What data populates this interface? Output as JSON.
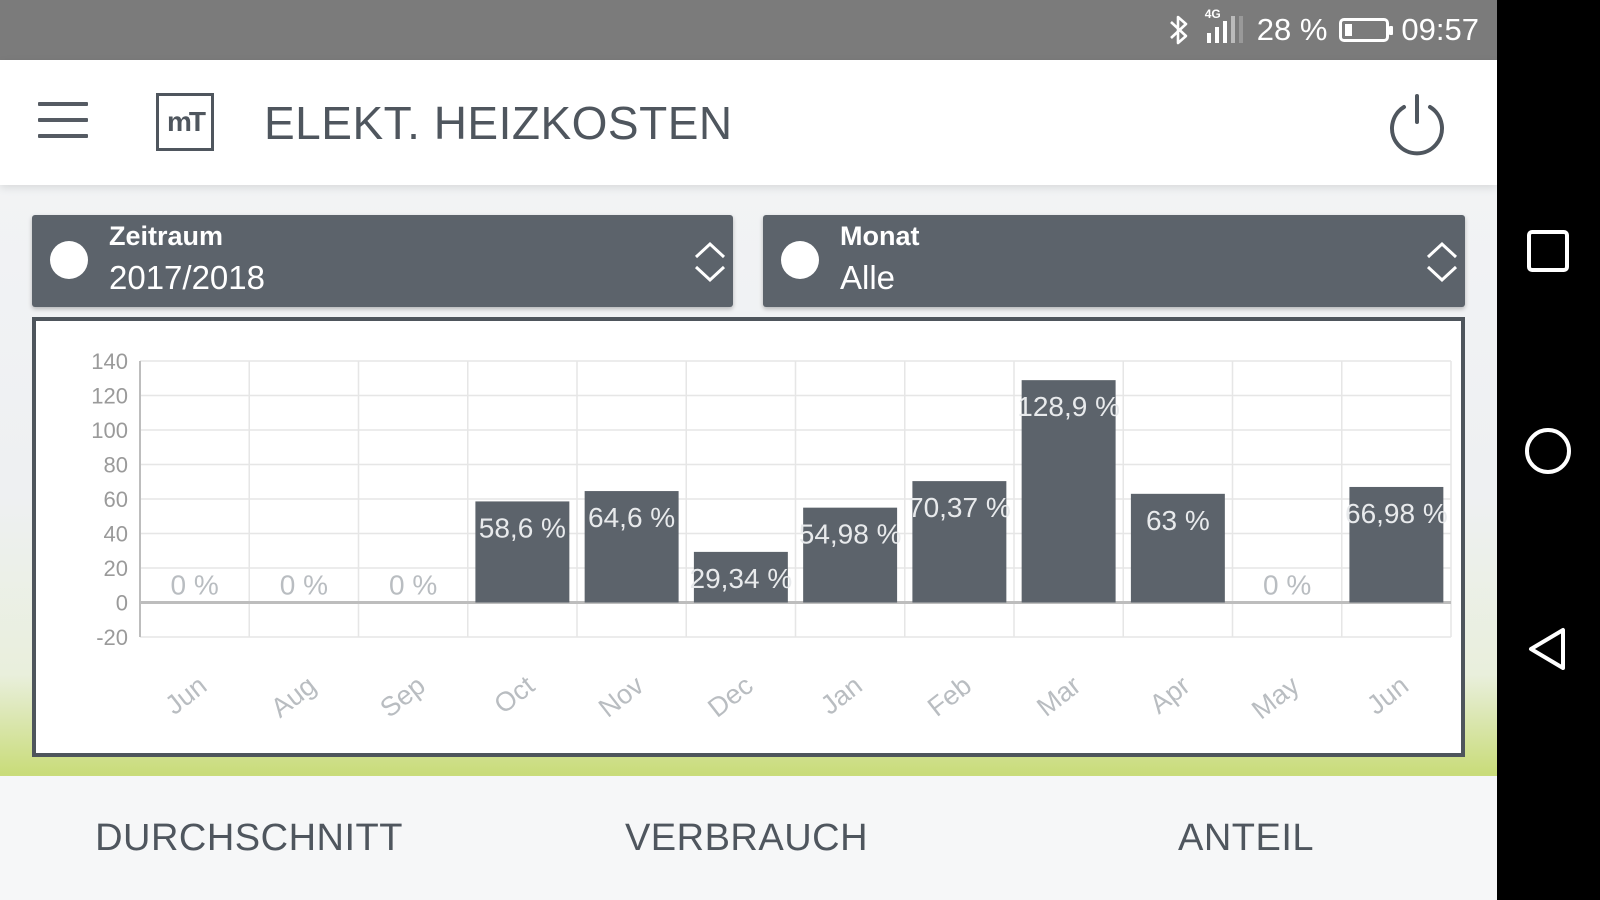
{
  "status_bar": {
    "network_label": "4G",
    "battery_percent": "28 %",
    "battery_level": 0.28,
    "time": "09:57",
    "icons": [
      "bluetooth-icon",
      "signal-icon",
      "battery-icon"
    ]
  },
  "app_bar": {
    "logo_text": "mT",
    "title": "ELEKT. HEIZKOSTEN",
    "icons": [
      "menu-icon",
      "power-icon"
    ]
  },
  "filters": [
    {
      "label": "Zeitraum",
      "value": "2017/2018"
    },
    {
      "label": "Monat",
      "value": "Alle"
    }
  ],
  "chart_data": {
    "type": "bar",
    "categories": [
      "Jun",
      "Aug",
      "Sep",
      "Oct",
      "Nov",
      "Dec",
      "Jan",
      "Feb",
      "Mar",
      "Apr",
      "May",
      "Jun"
    ],
    "values": [
      0,
      0,
      0,
      58.6,
      64.6,
      29.34,
      54.98,
      70.37,
      128.9,
      63,
      0,
      66.98
    ],
    "data_labels": [
      "0 %",
      "0 %",
      "0 %",
      "58,6 %",
      "64,6 %",
      "29,34 %",
      "54,98 %",
      "70,37 %",
      "128,9 %",
      "63 %",
      "0 %",
      "66,98 %"
    ],
    "y_ticks": [
      140,
      120,
      100,
      80,
      60,
      40,
      20,
      0,
      -20
    ],
    "ylim": [
      -20,
      140
    ],
    "grid": true,
    "colors": {
      "bar": "#5c636b",
      "label": "#e8eaec",
      "zero_label": "#b9bdc1",
      "grid": "#e6e6e6",
      "axis": "#bdbdbd"
    }
  },
  "tabs": [
    {
      "label": "DURCHSCHNITT",
      "active": true
    },
    {
      "label": "VERBRAUCH",
      "active": false
    },
    {
      "label": "ANTEIL",
      "active": false
    }
  ],
  "nav_bar": {
    "icons": [
      "recent-apps-icon",
      "home-icon",
      "back-icon"
    ]
  }
}
